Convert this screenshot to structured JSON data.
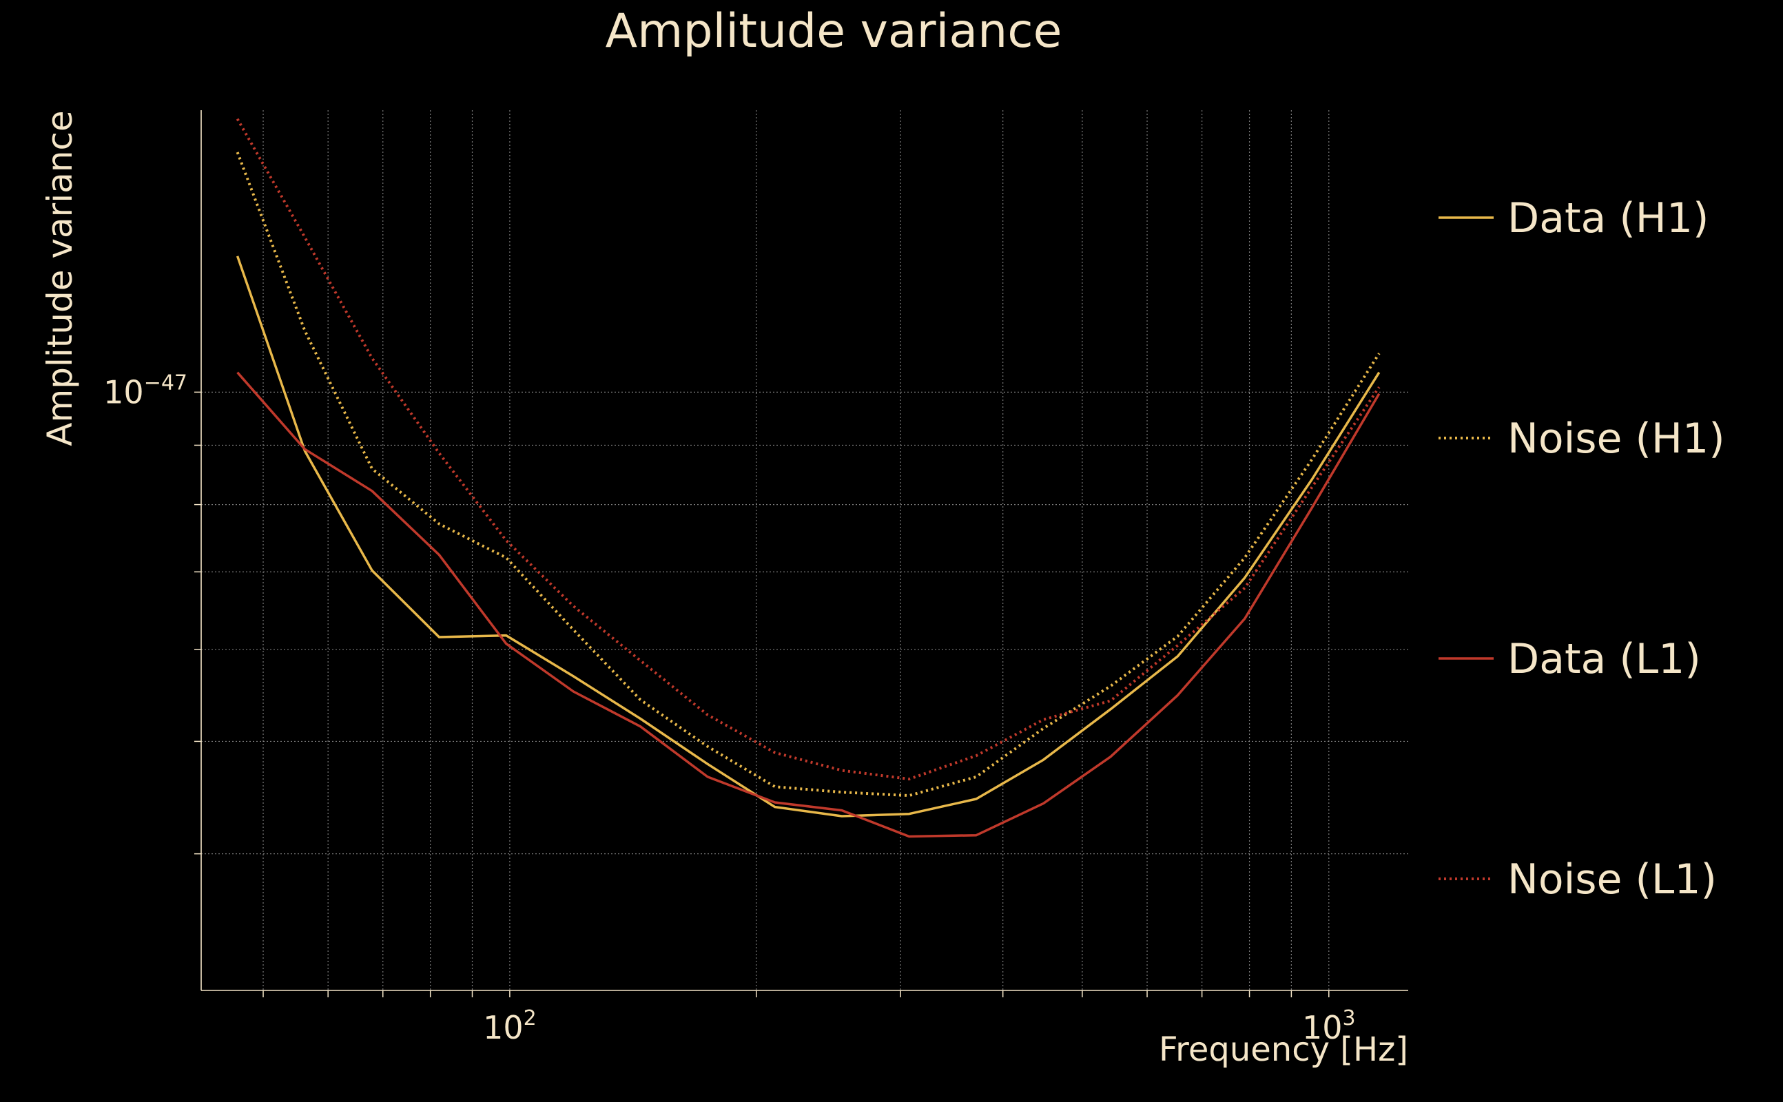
{
  "colors": {
    "background": "#000000",
    "text": "#f5e6c8",
    "grid": "#9a9a9a",
    "data_h1": "#e8b84a",
    "noise_h1": "#e8b84a",
    "data_l1": "#c0392b",
    "noise_l1": "#c0392b"
  },
  "chart_data": {
    "type": "line",
    "title": "Amplitude variance",
    "xlabel": "Frequency [Hz]",
    "ylabel": "Amplitude variance",
    "xscale": "log",
    "yscale": "log",
    "xlim": [
      42,
      1250
    ],
    "ylim": [
      3.05e-48,
      1.75e-47
    ],
    "x_ticks": [
      {
        "value": 100,
        "label": "10",
        "exp": "2"
      },
      {
        "value": 1000,
        "label": "10",
        "exp": "3"
      }
    ],
    "y_ticks": [
      {
        "value": 1e-47,
        "label": "10",
        "exp": "−47"
      }
    ],
    "x_minor_grid": [
      50,
      60,
      70,
      80,
      90,
      200,
      300,
      400,
      500,
      600,
      700,
      800,
      900
    ],
    "y_minor_grid": [
      3e-48,
      4e-48,
      5e-48,
      6e-48,
      7e-48,
      8e-48,
      9e-48,
      2e-47
    ],
    "grid": true,
    "legend_position": "right",
    "x": [
      46.5,
      56.2,
      67.9,
      82.0,
      99.0,
      119.6,
      144.4,
      174.4,
      210.7,
      254.4,
      307.3,
      371.1,
      448.2,
      541.4,
      653.8,
      789.6,
      953.7,
      1151.8
    ],
    "series": [
      {
        "name": "Data (H1)",
        "style": "solid",
        "color": "#e8b84a",
        "values": [
          1.31e-47,
          8.9e-48,
          7.02e-48,
          6.15e-48,
          6.17e-48,
          5.69e-48,
          5.23e-48,
          4.78e-48,
          4.39e-48,
          4.31e-48,
          4.33e-48,
          4.46e-48,
          4.82e-48,
          5.33e-48,
          5.92e-48,
          6.92e-48,
          8.41e-48,
          1.04e-47
        ]
      },
      {
        "name": "Noise (H1)",
        "style": "dotted",
        "color": "#e8b84a",
        "values": [
          1.61e-47,
          1.13e-47,
          8.59e-48,
          7.7e-48,
          7.2e-48,
          6.24e-48,
          5.43e-48,
          4.95e-48,
          4.57e-48,
          4.52e-48,
          4.49e-48,
          4.66e-48,
          5.13e-48,
          5.58e-48,
          6.16e-48,
          7.2e-48,
          8.75e-48,
          1.08e-47
        ]
      },
      {
        "name": "Data (L1)",
        "style": "solid",
        "color": "#c0392b",
        "values": [
          1.04e-47,
          8.93e-48,
          8.22e-48,
          7.24e-48,
          6.07e-48,
          5.52e-48,
          5.15e-48,
          4.66e-48,
          4.43e-48,
          4.36e-48,
          4.14e-48,
          4.15e-48,
          4.42e-48,
          4.85e-48,
          5.48e-48,
          6.38e-48,
          7.95e-48,
          9.97e-48
        ]
      },
      {
        "name": "Noise (L1)",
        "style": "dotted",
        "color": "#c0392b",
        "values": [
          1.72e-47,
          1.36e-47,
          1.07e-47,
          8.86e-48,
          7.45e-48,
          6.54e-48,
          5.87e-48,
          5.27e-48,
          4.89e-48,
          4.72e-48,
          4.64e-48,
          4.86e-48,
          5.22e-48,
          5.42e-48,
          6.05e-48,
          6.78e-48,
          8.28e-48,
          1.01e-47
        ]
      }
    ]
  }
}
